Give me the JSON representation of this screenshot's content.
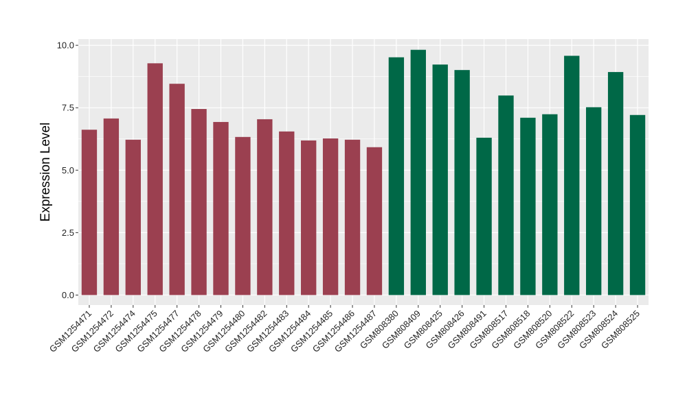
{
  "chart_data": {
    "type": "bar",
    "ylabel": "Expression Level",
    "xlabel": "",
    "ylim": [
      -0.4,
      10.25
    ],
    "yticks": [
      0.0,
      2.5,
      5.0,
      7.5,
      10.0
    ],
    "ytick_labels": [
      "0.0",
      "2.5",
      "5.0",
      "7.5",
      "10.0"
    ],
    "grid": true,
    "legend": "none",
    "background_color": "#ebebeb",
    "grid_color": "#ffffff",
    "categories": [
      "GSM1254471",
      "GSM1254472",
      "GSM1254474",
      "GSM1254475",
      "GSM1254477",
      "GSM1254478",
      "GSM1254479",
      "GSM1254480",
      "GSM1254482",
      "GSM1254483",
      "GSM1254484",
      "GSM1254485",
      "GSM1254486",
      "GSM1254487",
      "GSM808380",
      "GSM808409",
      "GSM808425",
      "GSM808426",
      "GSM808491",
      "GSM808517",
      "GSM808518",
      "GSM808520",
      "GSM808522",
      "GSM808523",
      "GSM808524",
      "GSM808525"
    ],
    "values": [
      6.62,
      7.07,
      6.22,
      9.28,
      8.46,
      7.45,
      6.93,
      6.33,
      7.04,
      6.55,
      6.19,
      6.27,
      6.22,
      5.92,
      9.52,
      9.82,
      9.23,
      9.01,
      6.3,
      7.99,
      7.1,
      7.24,
      9.58,
      7.52,
      8.93,
      7.21
    ],
    "bar_colors": [
      "#9b4050",
      "#9b4050",
      "#9b4050",
      "#9b4050",
      "#9b4050",
      "#9b4050",
      "#9b4050",
      "#9b4050",
      "#9b4050",
      "#9b4050",
      "#9b4050",
      "#9b4050",
      "#9b4050",
      "#9b4050",
      "#006847",
      "#006847",
      "#006847",
      "#006847",
      "#006847",
      "#006847",
      "#006847",
      "#006847",
      "#006847",
      "#006847",
      "#006847",
      "#006847"
    ]
  }
}
